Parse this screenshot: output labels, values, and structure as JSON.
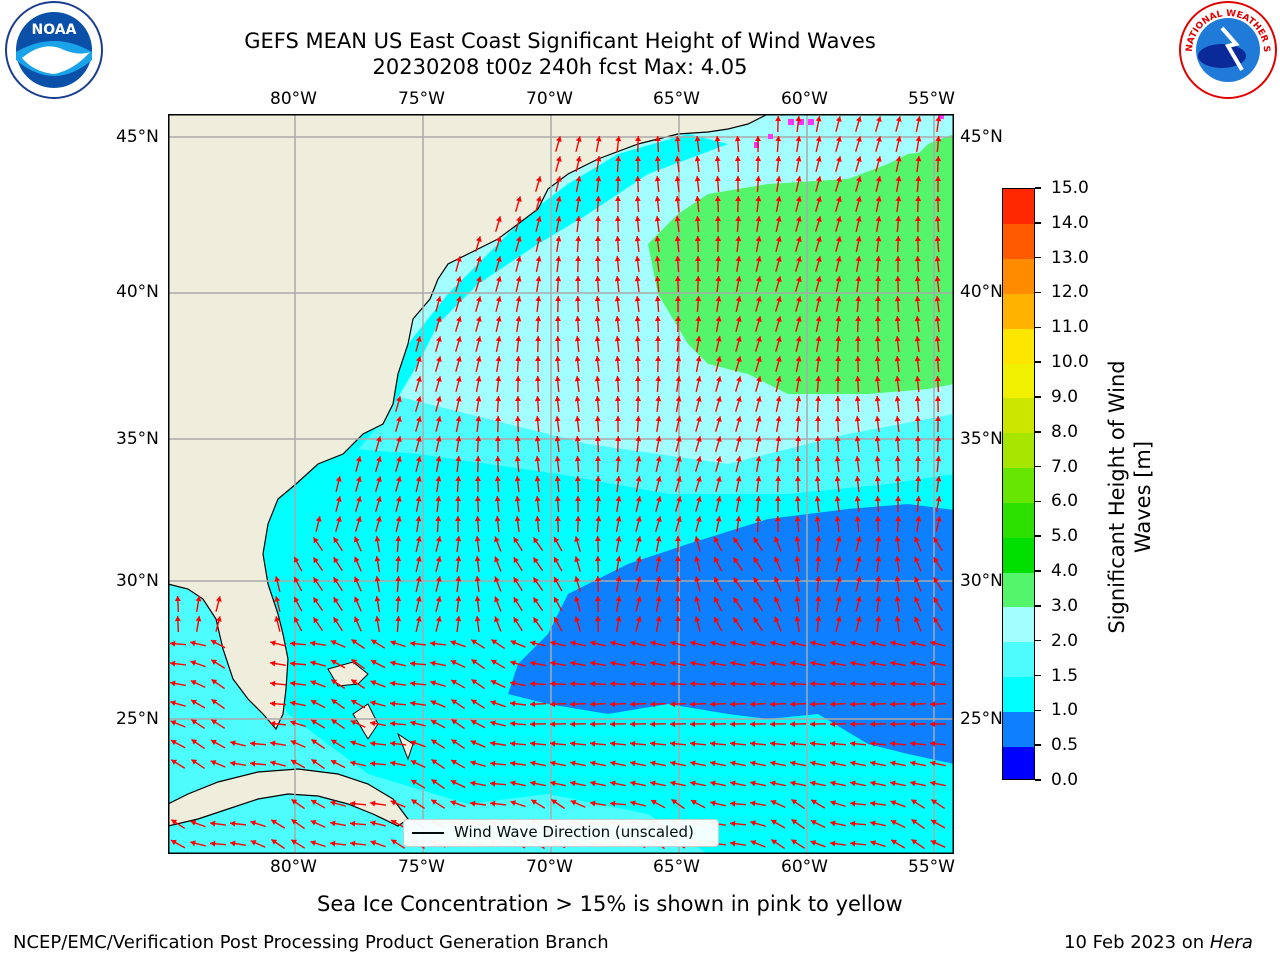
{
  "title": {
    "line1": "GEFS MEAN US East Coast Significant Height of Wind Waves",
    "line2": "20230208 t00z 240h fcst   Max: 4.05"
  },
  "logos": {
    "left": "noara-logo",
    "left_text": "NOAA",
    "right": "nws-logo",
    "right_text": "NATIONAL WEATHER SERVICE"
  },
  "map": {
    "lon_labels": [
      "80°W",
      "75°W",
      "70°W",
      "65°W",
      "60°W",
      "55°W"
    ],
    "lat_labels": [
      "45°N",
      "40°N",
      "35°N",
      "30°N",
      "25°N"
    ],
    "legend_label": "Wind Wave Direction (unscaled)",
    "colors": {
      "land": "#efeddc",
      "c0_05": "#0000ff",
      "c05_1": "#0d7fff",
      "c1_15": "#00ffff",
      "c15_2": "#4dfcfc",
      "c2_3": "#a3ffff",
      "c3_4": "#55f56b",
      "c4_5": "#00e000",
      "arrow": "#ff0000",
      "ice": "#ff33ff"
    }
  },
  "colorbar": {
    "label": "Significant Height of Wind Waves [m]",
    "ticks": [
      "0.0",
      "0.5",
      "1.0",
      "1.5",
      "2.0",
      "3.0",
      "4.0",
      "5.0",
      "6.0",
      "7.0",
      "8.0",
      "9.0",
      "10.0",
      "11.0",
      "12.0",
      "13.0",
      "14.0",
      "15.0"
    ],
    "colors": [
      "#0000ff",
      "#0d7fff",
      "#00ffff",
      "#4dfcfc",
      "#a3ffff",
      "#55f56b",
      "#00e000",
      "#2ce000",
      "#66e600",
      "#a6e600",
      "#cde600",
      "#f0f000",
      "#ffe600",
      "#ffb300",
      "#ff8c00",
      "#ff5a00",
      "#ff2800"
    ]
  },
  "sea_ice_note": "Sea Ice Concentration > 15% is shown in pink to yellow",
  "footer": {
    "left": "NCEP/EMC/Verification Post Processing Product Generation Branch",
    "right_prefix": "10 Feb 2023 on ",
    "right_host": "Hera"
  }
}
